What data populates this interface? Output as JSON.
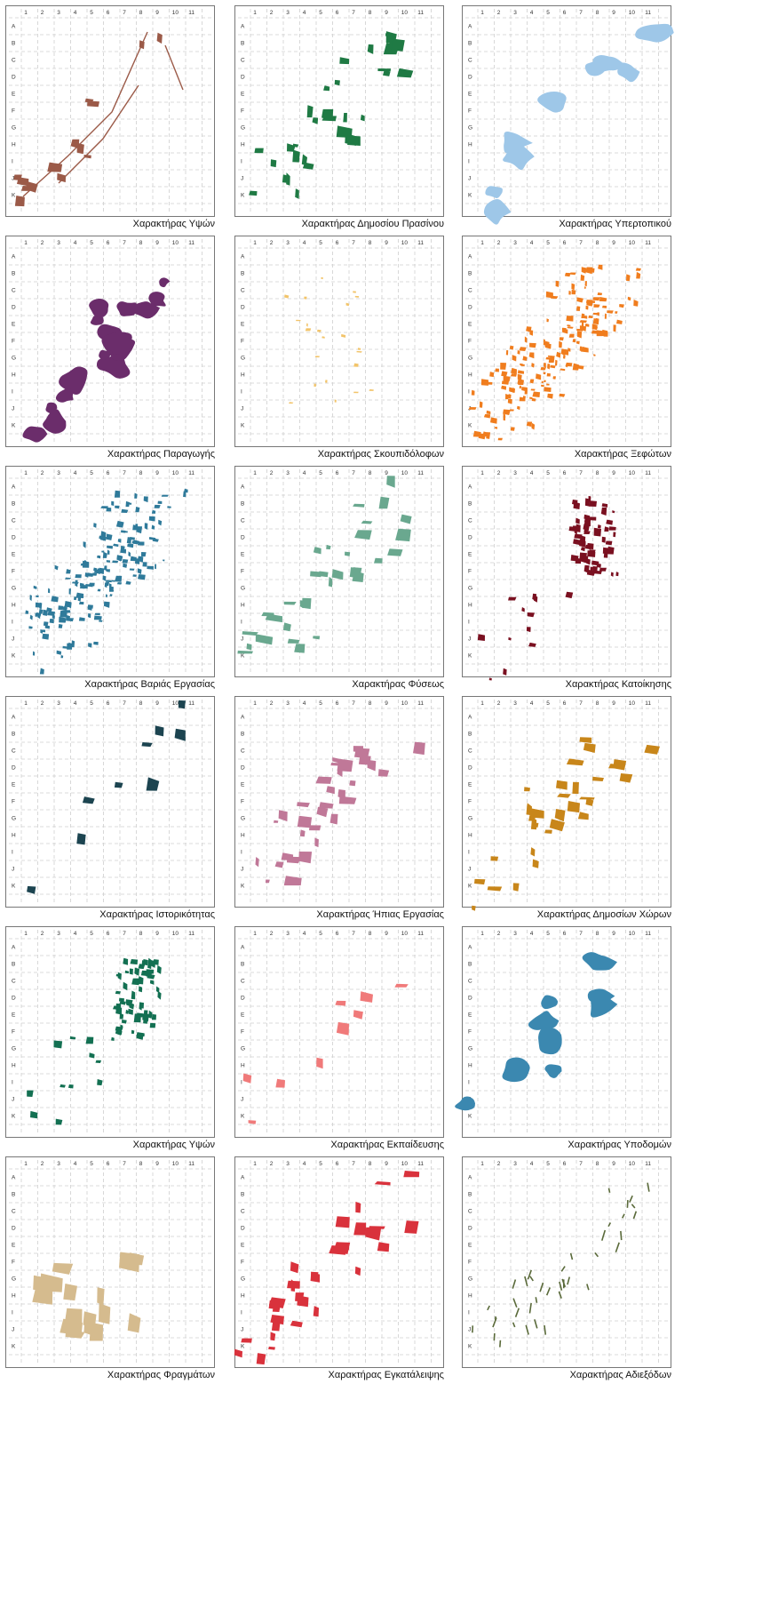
{
  "grid": {
    "columns": [
      "1",
      "2",
      "3",
      "4",
      "5",
      "6",
      "7",
      "8",
      "9",
      "10",
      "11"
    ],
    "rows": [
      "A",
      "B",
      "C",
      "D",
      "E",
      "F",
      "G",
      "H",
      "I",
      "J",
      "K"
    ]
  },
  "panels": [
    {
      "caption": "Χαρακτήρας Υψών",
      "color": "#9b5a48",
      "style": "lines-blocks"
    },
    {
      "caption": "Χαρακτήρας Δημοσίου Πρασίνου",
      "color": "#1f7a44",
      "style": "patches"
    },
    {
      "caption": "Χαρακτήρας Υπερτοπικού",
      "color": "#9ec7e8",
      "style": "blobs"
    },
    {
      "caption": "Χαρακτήρας Παραγωγής",
      "color": "#6b2d6b",
      "style": "blobs-dense"
    },
    {
      "caption": "Χαρακτήρας Σκουπιδόλοφων",
      "color": "#f2c46a",
      "style": "specks"
    },
    {
      "caption": "Χαρακτήρας Ξεφώτων",
      "color": "#f07d1e",
      "style": "cloud"
    },
    {
      "caption": "Χαρακτήρας Βαριάς Εργασίας",
      "color": "#2f7a9a",
      "style": "cloud"
    },
    {
      "caption": "Χαρακτήρας Φύσεως",
      "color": "#6aa88f",
      "style": "patches"
    },
    {
      "caption": "Χαρακτήρας Κατοίκησης",
      "color": "#7a1020",
      "style": "cluster"
    },
    {
      "caption": "Χαρακτήρας Ιστορικότητας",
      "color": "#1c4450",
      "style": "sparse"
    },
    {
      "caption": "Χαρακτήρας Ήπιας Εργασίας",
      "color": "#c07898",
      "style": "patches"
    },
    {
      "caption": "Χαρακτήρας Δημοσίων Χώρων",
      "color": "#c8861a",
      "style": "patches"
    },
    {
      "caption": "Χαρακτήρας Υψών",
      "color": "#137052",
      "style": "cluster"
    },
    {
      "caption": "Χαρακτήρας Εκπαίδευσης",
      "color": "#f07a7a",
      "style": "sparse"
    },
    {
      "caption": "Χαρακτήρας Υποδομών",
      "color": "#3b88b0",
      "style": "blobs"
    },
    {
      "caption": "Χαρακτήρας Φραγμάτων",
      "color": "#d5bb8e",
      "style": "blocks"
    },
    {
      "caption": "Χαρακτήρας Εγκατάλειψης",
      "color": "#d9323c",
      "style": "patches"
    },
    {
      "caption": "Χαρακτήρας Αδιεξόδων",
      "color": "#5a6a3a",
      "style": "dashes"
    }
  ]
}
